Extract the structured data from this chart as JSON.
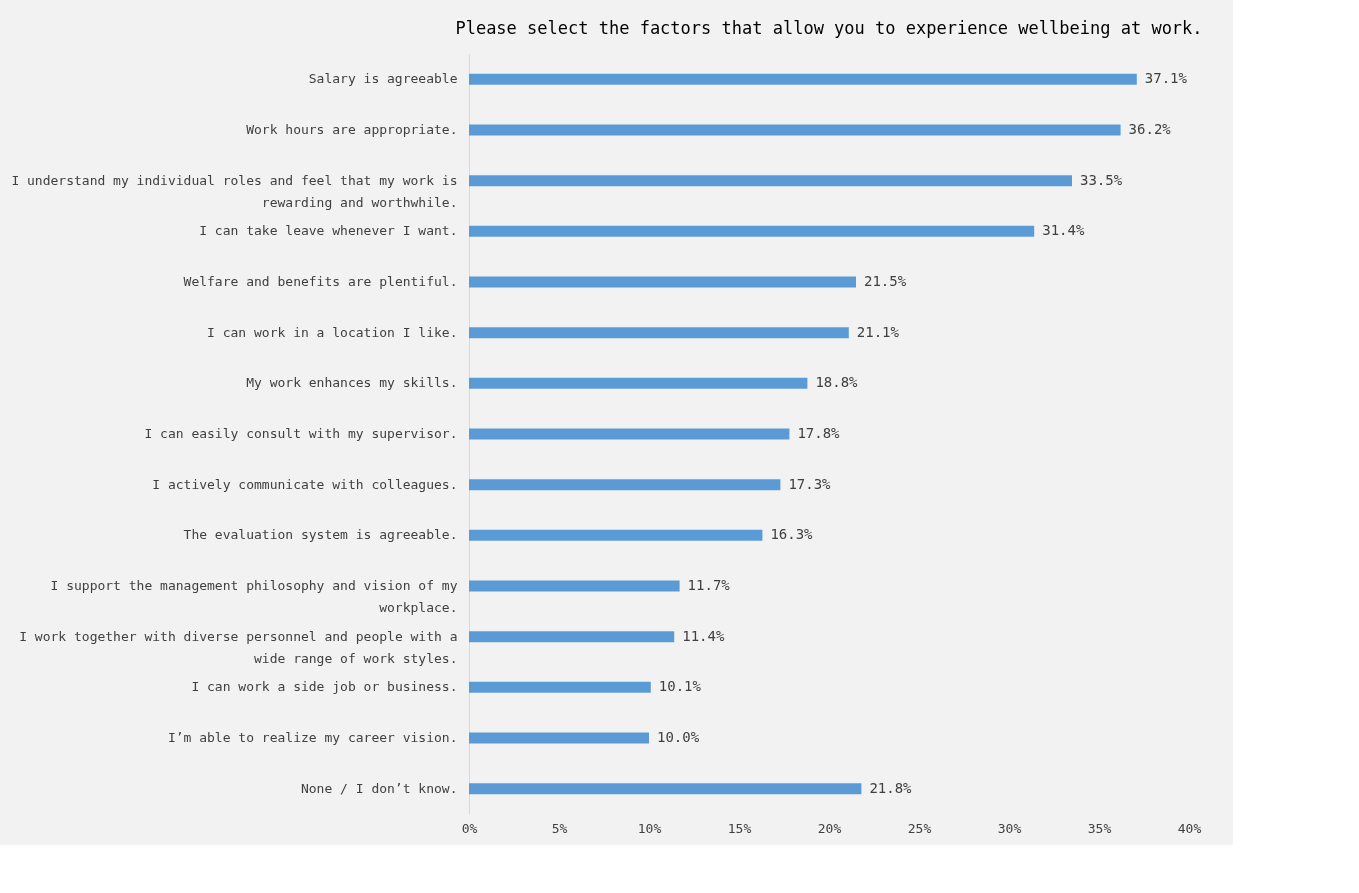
{
  "chart_data": {
    "type": "bar",
    "orientation": "horizontal",
    "title": "Please select the factors that allow you to experience wellbeing at work.",
    "categories": [
      "Salary is agreeable",
      "Work hours are appropriate.",
      "I understand my individual roles and feel that my work is rewarding and worthwhile.",
      "I can take leave whenever I want.",
      "Welfare and benefits are plentiful.",
      "I can work in a location I like.",
      "My work enhances my skills.",
      "I can easily consult with my supervisor.",
      "I actively communicate with colleagues.",
      "The evaluation system is agreeable.",
      "I support the management philosophy and vision of my workplace.",
      "I work together with diverse personnel and people with a wide range of work styles.",
      "I can work a side job or business.",
      "I’m able to realize my career vision.",
      "None / I don’t know."
    ],
    "values": [
      37.1,
      36.2,
      33.5,
      31.4,
      21.5,
      21.1,
      18.8,
      17.8,
      17.3,
      16.3,
      11.7,
      11.4,
      10.1,
      10.0,
      21.8
    ],
    "value_labels": [
      "37.1%",
      "36.2%",
      "33.5%",
      "31.4%",
      "21.5%",
      "21.1%",
      "18.8%",
      "17.8%",
      "17.3%",
      "16.3%",
      "11.7%",
      "11.4%",
      "10.1%",
      "10.0%",
      "21.8%"
    ],
    "color": "#5b9bd5",
    "xlim": [
      0,
      40
    ],
    "xticks": [
      {
        "value": 0,
        "label": "0%"
      },
      {
        "value": 5,
        "label": "5%"
      },
      {
        "value": 10,
        "label": "10%"
      },
      {
        "value": 15,
        "label": "15%"
      },
      {
        "value": 20,
        "label": "20%"
      },
      {
        "value": 25,
        "label": "25%"
      },
      {
        "value": 30,
        "label": "30%"
      },
      {
        "value": 35,
        "label": "35%"
      },
      {
        "value": 40,
        "label": "40%"
      }
    ],
    "xlabel": null
  }
}
